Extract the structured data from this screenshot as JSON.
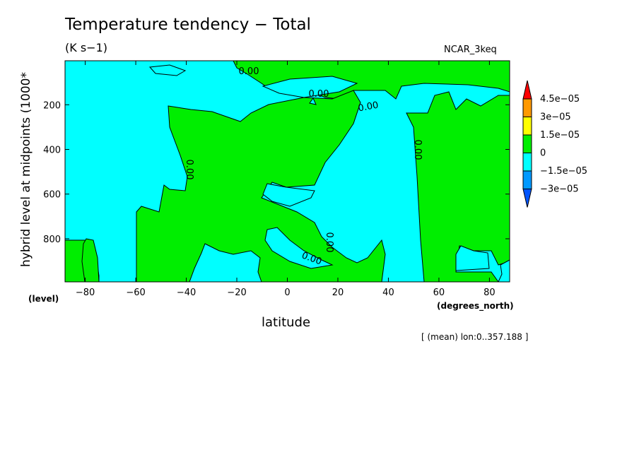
{
  "chart_data": {
    "type": "contour",
    "title": "Temperature tendency − Total",
    "units": "(K s−1)",
    "dataset": "NCAR_3keq",
    "xlabel": "latitude",
    "xunits": "(degrees_north)",
    "ylabel": "hybrid level at midpoints (1000*",
    "yunits": "(level)",
    "footnote": "[ (mean) lon:0..357.188 ]",
    "xlim": [
      -88,
      88
    ],
    "ylim": [
      993,
      3
    ],
    "xticks": [
      -80,
      -60,
      -40,
      -20,
      0,
      20,
      40,
      60,
      80
    ],
    "xtick_labels": [
      "−80",
      "−60",
      "−40",
      "−20",
      "0",
      "20",
      "40",
      "60",
      "80"
    ],
    "yticks": [
      200,
      400,
      600,
      800
    ],
    "ytick_labels": [
      "200",
      "400",
      "600",
      "800"
    ],
    "contour_labels": [
      "0.00",
      "0.00",
      "0.00",
      "0.00",
      "0.00",
      "0.00",
      "0.00"
    ],
    "colorbar": {
      "levels": [
        "4.5e−05",
        "3e−05",
        "1.5e−05",
        "0",
        "−1.5e−05",
        "−3e−05"
      ],
      "colors": [
        "#ff0000",
        "#ff9900",
        "#ffff00",
        "#00ee00",
        "#00ffff",
        "#0099ff",
        "#0055ff"
      ]
    },
    "colors": {
      "positive": "#00ee00",
      "negative": "#00ffff"
    }
  }
}
